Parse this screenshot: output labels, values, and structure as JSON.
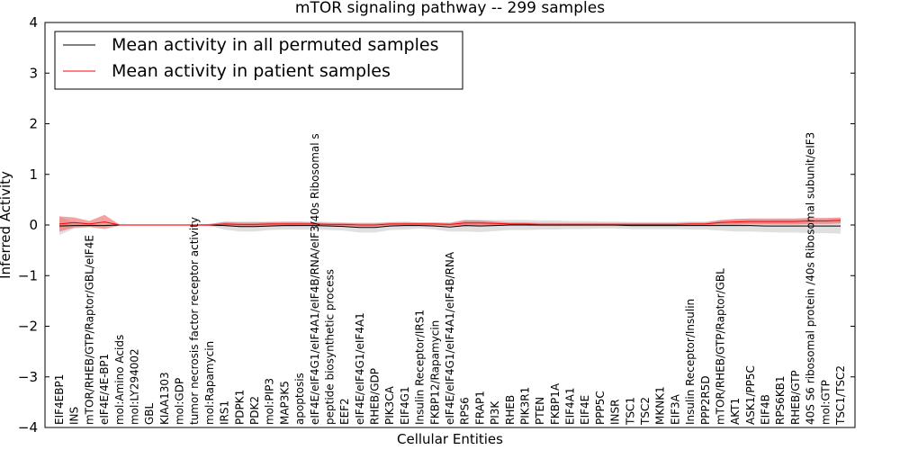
{
  "chart_data": {
    "type": "line",
    "title": "mTOR signaling pathway -- 299 samples",
    "xlabel": "Cellular Entities",
    "ylabel": "Inferred Activity",
    "ylim": [
      -4,
      4
    ],
    "yticks": [
      "−4",
      "−3",
      "−2",
      "−1",
      "0",
      "1",
      "2",
      "3",
      "4"
    ],
    "grid": false,
    "legend_position": "top-left",
    "colors": {
      "permuted": "#000000",
      "patient": "#ff0000",
      "permuted_band": "#bbbbbb",
      "patient_band": "#ee5555"
    },
    "categories": [
      "EIF4EBP1",
      "INS",
      "mTOR/RHEB/GTP/Raptor/GBL/eIF4E",
      "eIF4E/4E-BP1",
      "mol:Amino Acids",
      "mol:LY294002",
      "GBL",
      "KIAA1303",
      "mol:GDP",
      "tumor necrosis factor receptor activity",
      "mol:Rapamycin",
      "IRS1",
      "PDPK1",
      "PDK2",
      "mol:PIP3",
      "MAP3K5",
      "apoptosis",
      "eIF4E/eIF4G1/eIF4A1/eIF4B/RNA/eIF3/40s Ribosomal s",
      "peptide biosynthetic process",
      "EEF2",
      "eIF4E/eIF4G1/eIF4A1",
      "RHEB/GDP",
      "PIK3CA",
      "EIF4G1",
      "Insulin Receptor/IRS1",
      "FKBP12/Rapamycin",
      "eIF4E/eIF4G1/eIF4A1/eIF4B/RNA",
      "RPS6",
      "FRAP1",
      "PI3K",
      "RHEB",
      "PIK3R1",
      "PTEN",
      "FKBP1A",
      "EIF4A1",
      "EIF4E",
      "PPP5C",
      "INSR",
      "TSC1",
      "TSC2",
      "MKNK1",
      "EIF3A",
      "Insulin Receptor/Insulin",
      "PPP2R5D",
      "mTOR/RHEB/GTP/Raptor/GBL",
      "AKT1",
      "ASK1/PP5C",
      "EIF4B",
      "RPS6KB1",
      "RHEB/GTP",
      "40S S6 ribosomal protein /40s Ribosomal subunit/eIF3",
      "mol:GTP",
      "TSC1/TSC2"
    ],
    "series": [
      {
        "name": "Mean activity in all permuted samples",
        "color": "#000000",
        "values": [
          -0.02,
          -0.01,
          -0.01,
          -0.01,
          0,
          0,
          0,
          0,
          0,
          0,
          0,
          -0.01,
          -0.03,
          -0.03,
          -0.02,
          -0.01,
          -0.01,
          -0.01,
          -0.02,
          -0.03,
          -0.05,
          -0.05,
          -0.02,
          -0.01,
          -0.01,
          -0.02,
          -0.04,
          -0.01,
          -0.02,
          -0.01,
          0,
          0,
          0,
          0,
          0,
          0,
          0,
          0,
          -0.01,
          -0.01,
          -0.01,
          -0.01,
          -0.01,
          -0.01,
          -0.01,
          -0.01,
          -0.01,
          -0.02,
          -0.02,
          -0.02,
          -0.02,
          -0.02,
          -0.02
        ],
        "band": [
          0.18,
          0.06,
          0.03,
          0.02,
          0.01,
          0.01,
          0.01,
          0.01,
          0.01,
          0.01,
          0.02,
          0.08,
          0.1,
          0.1,
          0.08,
          0.08,
          0.08,
          0.08,
          0.08,
          0.08,
          0.1,
          0.1,
          0.08,
          0.08,
          0.06,
          0.07,
          0.09,
          0.12,
          0.12,
          0.11,
          0.1,
          0.1,
          0.09,
          0.09,
          0.08,
          0.08,
          0.07,
          0.07,
          0.07,
          0.07,
          0.07,
          0.07,
          0.08,
          0.08,
          0.1,
          0.12,
          0.12,
          0.12,
          0.13,
          0.13,
          0.14,
          0.14,
          0.15
        ]
      },
      {
        "name": "Mean activity in patient samples",
        "color": "#ff0000",
        "values": [
          0.02,
          0.05,
          0.02,
          0.06,
          0,
          0,
          0,
          0,
          0,
          0,
          0,
          0.02,
          0.01,
          0.01,
          0.02,
          0.02,
          0.02,
          0.02,
          0.01,
          0.01,
          0,
          0,
          0.02,
          0.02,
          0.02,
          0.02,
          0.01,
          0.04,
          0.04,
          0.03,
          0.02,
          0.02,
          0.01,
          0.01,
          0.01,
          0.01,
          0.01,
          0.01,
          0.01,
          0.01,
          0.01,
          0.01,
          0.02,
          0.02,
          0.05,
          0.06,
          0.07,
          0.07,
          0.07,
          0.07,
          0.08,
          0.08,
          0.09
        ],
        "band": [
          0.15,
          0.1,
          0.06,
          0.14,
          0.01,
          0.01,
          0.01,
          0.01,
          0.01,
          0.01,
          0.02,
          0.04,
          0.04,
          0.04,
          0.04,
          0.04,
          0.04,
          0.03,
          0.03,
          0.03,
          0.03,
          0.03,
          0.03,
          0.03,
          0.03,
          0.03,
          0.03,
          0.05,
          0.05,
          0.04,
          0.03,
          0.03,
          0.03,
          0.03,
          0.03,
          0.03,
          0.03,
          0.03,
          0.03,
          0.03,
          0.03,
          0.03,
          0.03,
          0.03,
          0.05,
          0.06,
          0.06,
          0.06,
          0.06,
          0.06,
          0.06,
          0.06,
          0.06
        ]
      }
    ]
  }
}
